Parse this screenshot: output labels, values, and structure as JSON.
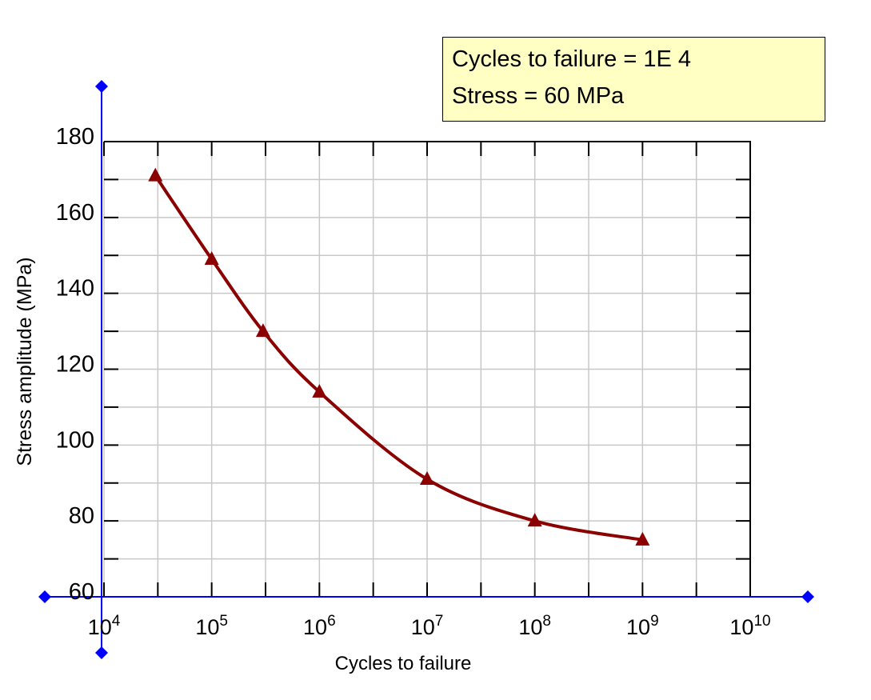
{
  "readout": {
    "line1": "Cycles to failure = 1E 4",
    "line2": "Stress = 60 MPa"
  },
  "colors": {
    "accent": "#0000ff",
    "curve": "#8b0000",
    "grid": "#c8c8c8",
    "frame": "#000000",
    "readout_bg": "#ffffc4"
  },
  "chart_data": {
    "type": "line",
    "xlabel": "Cycles to failure",
    "ylabel": "Stress amplitude (MPa)",
    "xscale": "log",
    "xlim": [
      10000,
      10000000000
    ],
    "ylim": [
      60,
      180
    ],
    "x_ticks": [
      {
        "value": 10000,
        "base": "10",
        "exp": "4"
      },
      {
        "value": 100000,
        "base": "10",
        "exp": "5"
      },
      {
        "value": 1000000,
        "base": "10",
        "exp": "6"
      },
      {
        "value": 10000000,
        "base": "10",
        "exp": "7"
      },
      {
        "value": 100000000,
        "base": "10",
        "exp": "8"
      },
      {
        "value": 1000000000,
        "base": "10",
        "exp": "9"
      },
      {
        "value": 10000000000,
        "base": "10",
        "exp": "10"
      }
    ],
    "y_ticks": [
      "60",
      "80",
      "100",
      "120",
      "140",
      "160",
      "180"
    ],
    "grid": true,
    "series": [
      {
        "marker": "triangle",
        "x": [
          30000,
          100000,
          300000,
          1000000,
          10000000,
          100000000,
          1000000000
        ],
        "y": [
          171,
          149,
          130,
          114,
          91,
          80,
          75
        ]
      }
    ]
  }
}
